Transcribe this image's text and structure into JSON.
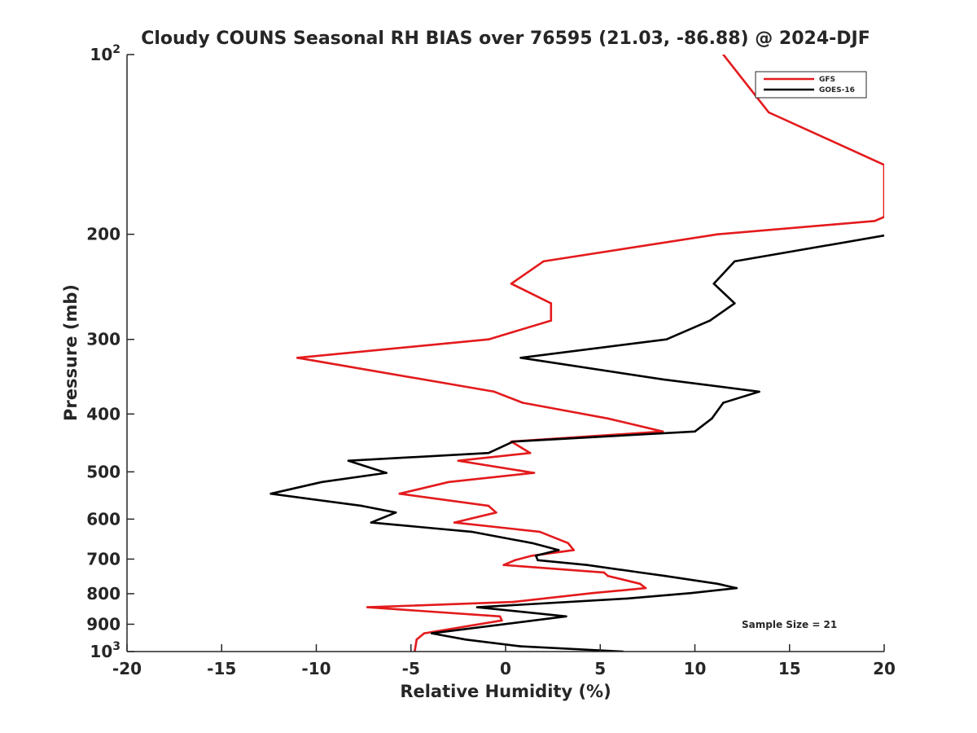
{
  "chart_data": {
    "type": "line",
    "title": "Cloudy COUNS Seasonal RH BIAS over 76595 (21.03, -86.88) @ 2024-DJF",
    "xlabel": "Relative Humidity (%)",
    "ylabel": "Pressure (mb)",
    "xlim": [
      -20,
      20
    ],
    "ylim": [
      100,
      1000
    ],
    "yscale": "log",
    "y_reversed": true,
    "xticks": [
      -20,
      -15,
      -10,
      -5,
      0,
      5,
      10,
      15,
      20
    ],
    "xtick_labels": [
      "-20",
      "-15",
      "-10",
      "-5",
      "0",
      "5",
      "10",
      "15",
      "20"
    ],
    "yticks": [
      100,
      200,
      300,
      400,
      500,
      600,
      700,
      800,
      900,
      1000
    ],
    "ytick_labels": [
      {
        "base": "10",
        "exp": "2"
      },
      {
        "base": "200"
      },
      {
        "base": "300"
      },
      {
        "base": "400"
      },
      {
        "base": "500"
      },
      {
        "base": "600"
      },
      {
        "base": "700"
      },
      {
        "base": "800"
      },
      {
        "base": "900"
      },
      {
        "base": "10",
        "exp": "3"
      }
    ],
    "grid": false,
    "legend_position": "top-right",
    "annotation": "Sample Size = 21",
    "series": [
      {
        "name": "GFS",
        "color": "#e31a1c",
        "points": [
          [
            11.5,
            100
          ],
          [
            13.9,
            125
          ],
          [
            20.0,
            153
          ],
          [
            20.0,
            187
          ],
          [
            19.5,
            190
          ],
          [
            11.2,
            200
          ],
          [
            2.0,
            222
          ],
          [
            0.3,
            242
          ],
          [
            2.4,
            261
          ],
          [
            2.4,
            279
          ],
          [
            -0.9,
            300
          ],
          [
            -11.0,
            322
          ],
          [
            -0.6,
            367
          ],
          [
            0.9,
            383
          ],
          [
            5.4,
            407
          ],
          [
            8.3,
            428
          ],
          [
            0.3,
            445
          ],
          [
            1.3,
            465
          ],
          [
            -2.5,
            479
          ],
          [
            1.5,
            502
          ],
          [
            -3.0,
            520
          ],
          [
            -5.6,
            544
          ],
          [
            -0.9,
            570
          ],
          [
            -0.5,
            585
          ],
          [
            -2.7,
            608
          ],
          [
            1.8,
            630
          ],
          [
            3.3,
            658
          ],
          [
            3.6,
            676
          ],
          [
            1.4,
            691
          ],
          [
            0.5,
            703
          ],
          [
            -0.1,
            716
          ],
          [
            5.2,
            737
          ],
          [
            5.4,
            747
          ],
          [
            7.1,
            770
          ],
          [
            7.4,
            783
          ],
          [
            4.6,
            798
          ],
          [
            0.4,
            826
          ],
          [
            -7.3,
            843
          ],
          [
            -0.3,
            873
          ],
          [
            -0.2,
            887
          ],
          [
            -4.3,
            932
          ],
          [
            -4.7,
            955
          ],
          [
            -4.8,
            1000
          ]
        ]
      },
      {
        "name": "GOES-16",
        "color": "#000000",
        "points": [
          [
            20.0,
            201
          ],
          [
            12.1,
            222
          ],
          [
            11.0,
            242
          ],
          [
            12.1,
            261
          ],
          [
            10.8,
            279
          ],
          [
            8.5,
            300
          ],
          [
            0.8,
            322
          ],
          [
            8.3,
            350
          ],
          [
            13.4,
            367
          ],
          [
            11.5,
            383
          ],
          [
            10.9,
            407
          ],
          [
            10.0,
            428
          ],
          [
            0.4,
            445
          ],
          [
            -0.9,
            465
          ],
          [
            -8.3,
            479
          ],
          [
            -6.3,
            502
          ],
          [
            -9.7,
            520
          ],
          [
            -12.4,
            544
          ],
          [
            -7.6,
            570
          ],
          [
            -5.8,
            585
          ],
          [
            -7.1,
            608
          ],
          [
            -1.8,
            630
          ],
          [
            1.4,
            658
          ],
          [
            2.8,
            676
          ],
          [
            1.6,
            691
          ],
          [
            1.7,
            703
          ],
          [
            4.3,
            716
          ],
          [
            7.1,
            737
          ],
          [
            8.4,
            747
          ],
          [
            11.2,
            770
          ],
          [
            12.2,
            783
          ],
          [
            9.8,
            798
          ],
          [
            6.4,
            815
          ],
          [
            -1.5,
            843
          ],
          [
            3.2,
            873
          ],
          [
            -3.9,
            932
          ],
          [
            -2.1,
            955
          ],
          [
            0.8,
            980
          ],
          [
            6.2,
            1000
          ]
        ]
      }
    ]
  }
}
